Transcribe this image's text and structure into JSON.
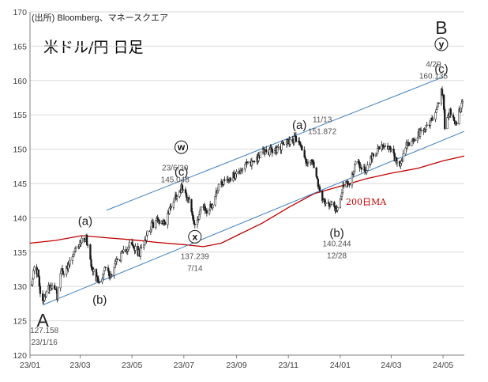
{
  "source_note": "(出所) Bloomberg、マネースクエア",
  "title": "米ドル/円 日足",
  "ma_label": "200日MA",
  "colors": {
    "price": "#1a1a1a",
    "ma": "#c00000",
    "channel": "#3f7fbf",
    "grid": "#d9d9d9",
    "axis": "#7f7f7f"
  },
  "chart_data": {
    "type": "candlestick",
    "y_ticks": [
      "120",
      "125",
      "130",
      "135",
      "140",
      "145",
      "150",
      "155",
      "160",
      "165",
      "170"
    ],
    "x_ticks": [
      "23/01",
      "23/03",
      "23/05",
      "23/07",
      "23/09",
      "23/11",
      "24/01",
      "24/03",
      "24/05"
    ],
    "ylim": [
      120,
      170
    ],
    "xlim": [
      "2023-01-01",
      "2024-05-26"
    ],
    "price_path": [
      [
        "2023-01-03",
        130.8
      ],
      [
        "2023-01-06",
        132.5
      ],
      [
        "2023-01-10",
        132.2
      ],
      [
        "2023-01-13",
        128.9
      ],
      [
        "2023-01-16",
        127.5
      ],
      [
        "2023-01-19",
        128.9
      ],
      [
        "2023-01-25",
        130.2
      ],
      [
        "2023-01-31",
        130.0
      ],
      [
        "2023-02-02",
        128.6
      ],
      [
        "2023-02-06",
        132.0
      ],
      [
        "2023-02-14",
        132.6
      ],
      [
        "2023-02-20",
        134.3
      ],
      [
        "2023-02-28",
        136.4
      ],
      [
        "2023-03-08",
        137.2
      ],
      [
        "2023-03-14",
        133.4
      ],
      [
        "2023-03-20",
        131.2
      ],
      [
        "2023-03-24",
        130.7
      ],
      [
        "2023-03-31",
        132.8
      ],
      [
        "2023-04-05",
        131.4
      ],
      [
        "2023-04-12",
        133.6
      ],
      [
        "2023-04-20",
        134.7
      ],
      [
        "2023-04-28",
        136.2
      ],
      [
        "2023-05-10",
        134.7
      ],
      [
        "2023-05-19",
        138.0
      ],
      [
        "2023-05-30",
        139.7
      ],
      [
        "2023-06-09",
        139.4
      ],
      [
        "2023-06-16",
        141.9
      ],
      [
        "2023-06-23",
        143.6
      ],
      [
        "2023-06-30",
        144.6
      ],
      [
        "2023-07-07",
        142.6
      ],
      [
        "2023-07-14",
        138.5
      ],
      [
        "2023-07-21",
        141.6
      ],
      [
        "2023-07-28",
        140.9
      ],
      [
        "2023-08-04",
        142.0
      ],
      [
        "2023-08-11",
        144.8
      ],
      [
        "2023-08-18",
        145.5
      ],
      [
        "2023-08-29",
        146.1
      ],
      [
        "2023-09-08",
        147.3
      ],
      [
        "2023-09-20",
        148.2
      ],
      [
        "2023-10-03",
        149.6
      ],
      [
        "2023-10-17",
        149.8
      ],
      [
        "2023-10-31",
        151.2
      ],
      [
        "2023-11-13",
        151.6
      ],
      [
        "2023-11-21",
        148.3
      ],
      [
        "2023-11-30",
        148.0
      ],
      [
        "2023-12-07",
        144.0
      ],
      [
        "2023-12-14",
        141.9
      ],
      [
        "2023-12-22",
        142.4
      ],
      [
        "2023-12-28",
        141.0
      ],
      [
        "2024-01-04",
        144.6
      ],
      [
        "2024-01-12",
        144.9
      ],
      [
        "2024-01-19",
        148.1
      ],
      [
        "2024-01-31",
        146.9
      ],
      [
        "2024-02-09",
        149.3
      ],
      [
        "2024-02-16",
        150.2
      ],
      [
        "2024-02-29",
        150.0
      ],
      [
        "2024-03-11",
        147.0
      ],
      [
        "2024-03-19",
        150.5
      ],
      [
        "2024-03-29",
        151.4
      ],
      [
        "2024-04-10",
        153.1
      ],
      [
        "2024-04-19",
        154.6
      ],
      [
        "2024-04-26",
        156.8
      ],
      [
        "2024-04-29",
        159.0
      ],
      [
        "2024-05-01",
        157.5
      ],
      [
        "2024-05-03",
        153.0
      ],
      [
        "2024-05-09",
        155.5
      ],
      [
        "2024-05-16",
        153.5
      ],
      [
        "2024-05-21",
        155.9
      ],
      [
        "2024-05-24",
        156.9
      ]
    ],
    "ma200_path": [
      [
        "2023-01-01",
        136.3
      ],
      [
        "2023-01-31",
        136.7
      ],
      [
        "2023-03-03",
        137.4
      ],
      [
        "2023-04-01",
        137.1
      ],
      [
        "2023-05-01",
        136.8
      ],
      [
        "2023-06-01",
        136.4
      ],
      [
        "2023-07-01",
        136.1
      ],
      [
        "2023-07-24",
        135.8
      ],
      [
        "2023-08-14",
        136.3
      ],
      [
        "2023-09-01",
        137.4
      ],
      [
        "2023-10-01",
        139.2
      ],
      [
        "2023-11-01",
        141.5
      ],
      [
        "2023-12-01",
        143.5
      ],
      [
        "2024-01-01",
        144.6
      ],
      [
        "2024-02-01",
        145.7
      ],
      [
        "2024-03-01",
        146.5
      ],
      [
        "2024-04-01",
        147.2
      ],
      [
        "2024-05-01",
        148.3
      ],
      [
        "2024-05-26",
        149.0
      ]
    ],
    "channel_lines": [
      {
        "name": "upper",
        "points": [
          [
            "2023-04-01",
            141.1
          ],
          [
            "2024-05-03",
            160.6
          ]
        ]
      },
      {
        "name": "lower",
        "points": [
          [
            "2023-01-16",
            127.3
          ],
          [
            "2024-05-26",
            152.6
          ]
        ]
      }
    ],
    "wave_labels": [
      {
        "text": "A",
        "date": "2023-01-16",
        "price": 127.158,
        "style": "big",
        "pos": "below"
      },
      {
        "text": "(a)",
        "date": "2023-03-07",
        "price": 137.9,
        "style": "wave",
        "pos": "above"
      },
      {
        "text": "(b)",
        "date": "2023-03-24",
        "price": 130.5,
        "style": "wave",
        "pos": "below"
      },
      {
        "text": "(c)",
        "date": "2023-06-28",
        "price": 145.1,
        "style": "wave",
        "pos": "above"
      },
      {
        "text": "(a)",
        "date": "2023-11-14",
        "price": 151.9,
        "style": "wave",
        "pos": "above"
      },
      {
        "text": "(b)",
        "date": "2023-12-28",
        "price": 140.2,
        "style": "wave",
        "pos": "below"
      },
      {
        "text": "(c)",
        "date": "2024-04-29",
        "price": 160.1,
        "style": "wave",
        "pos": "above"
      },
      {
        "text": "B",
        "date": "2024-04-29",
        "price": 160.1,
        "style": "big",
        "pos": "top"
      }
    ],
    "circled_labels": [
      {
        "text": "w",
        "date": "2023-06-28",
        "price": 145.1,
        "pos": "above-high"
      },
      {
        "text": "x",
        "date": "2023-07-14",
        "price": 137.239,
        "pos": "at"
      },
      {
        "text": "y",
        "date": "2024-04-29",
        "price": 160.1,
        "pos": "above-high"
      }
    ],
    "annotations": [
      {
        "lines": [
          "127.158",
          "23/1/16"
        ],
        "date": "2023-01-16",
        "price": 127.158,
        "pos": "below"
      },
      {
        "lines": [
          "23/6/30",
          "145.048"
        ],
        "date": "2023-06-30",
        "price": 145.048,
        "pos": "left"
      },
      {
        "lines": [
          "137.239",
          "7/14"
        ],
        "date": "2023-07-14",
        "price": 137.239,
        "pos": "below"
      },
      {
        "lines": [
          "11/13",
          "151.872"
        ],
        "date": "2023-11-13",
        "price": 151.872,
        "pos": "right"
      },
      {
        "lines": [
          "140.244",
          "12/28"
        ],
        "date": "2023-12-28",
        "price": 140.244,
        "pos": "below-far"
      },
      {
        "lines": [
          "4/29",
          "160.135"
        ],
        "date": "2024-04-29",
        "price": 160.135,
        "pos": "left"
      }
    ]
  }
}
